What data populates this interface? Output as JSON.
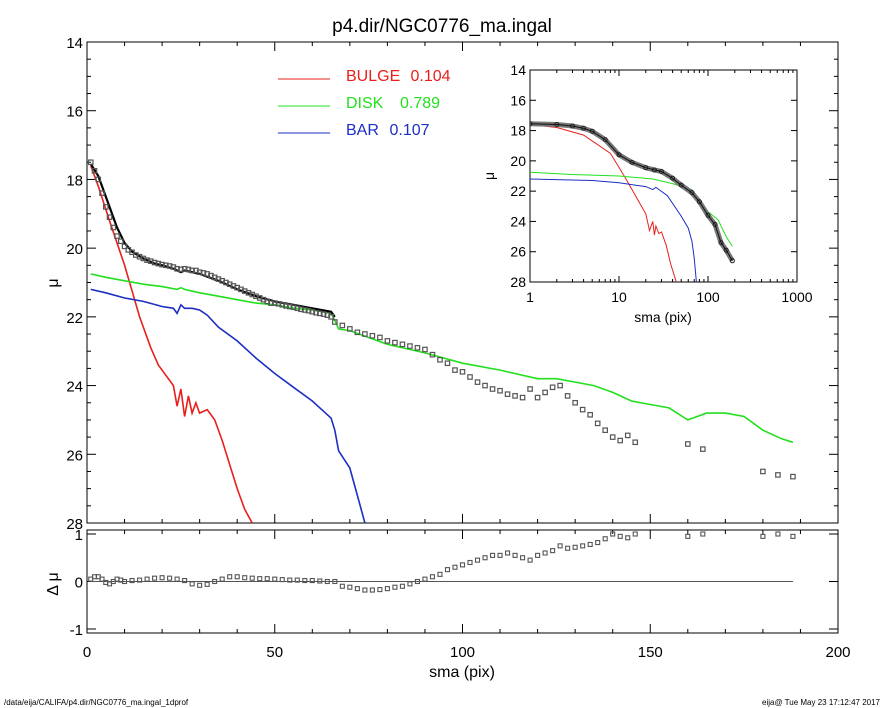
{
  "title": "p4.dir/NGC0776_ma.ingal",
  "footer": {
    "left": "/data/eija/CALIFA/p4.dir/NGC0776_ma.ingal_1dprof",
    "right": "eija@  Tue May 23 17:12:47 2017"
  },
  "colors": {
    "bulge": "#e8201c",
    "disk": "#22e01e",
    "bar": "#1c2ec4",
    "model": "#000000",
    "data_points": "#555555"
  },
  "chart_data": [
    {
      "type": "line",
      "panel": "main",
      "xlabel": "",
      "ylabel": "μ",
      "xlim": [
        0,
        200
      ],
      "ylim": [
        28,
        14
      ],
      "y_inverted": true,
      "yticks": [
        14,
        16,
        18,
        20,
        22,
        24,
        26,
        28
      ],
      "legend": {
        "placement": "top-center",
        "entries": [
          {
            "name": "BULGE",
            "value": "0.104",
            "color": "#e8201c"
          },
          {
            "name": "DISK",
            "value": "0.789",
            "color": "#22e01e"
          },
          {
            "name": "BAR",
            "value": "0.107",
            "color": "#1c2ec4"
          }
        ]
      },
      "series": [
        {
          "name": "BULGE",
          "x": [
            1,
            3,
            6,
            10,
            14,
            17,
            19,
            21,
            23,
            24,
            25,
            26,
            27,
            28,
            29,
            30,
            32,
            34,
            36,
            38,
            40,
            42,
            44
          ],
          "y": [
            17.6,
            18.2,
            19.2,
            20.5,
            22.0,
            22.9,
            23.4,
            23.7,
            24.0,
            24.6,
            24.1,
            24.9,
            24.3,
            24.8,
            24.5,
            24.8,
            24.7,
            25.0,
            25.6,
            26.3,
            27.0,
            27.6,
            28.0
          ]
        },
        {
          "name": "DISK",
          "x": [
            1,
            5,
            10,
            15,
            20,
            24,
            25,
            26,
            30,
            35,
            40,
            45,
            50,
            55,
            60,
            65,
            66,
            67,
            70,
            75,
            80,
            90,
            100,
            110,
            120,
            125,
            130,
            135,
            140,
            145,
            150,
            155,
            160,
            165,
            170,
            175,
            180,
            185,
            188
          ],
          "y": [
            20.75,
            20.85,
            20.95,
            21.05,
            21.12,
            21.2,
            21.15,
            21.2,
            21.3,
            21.4,
            21.5,
            21.6,
            21.65,
            21.75,
            21.8,
            21.9,
            22.1,
            22.35,
            22.4,
            22.6,
            22.8,
            23.05,
            23.35,
            23.55,
            23.8,
            23.8,
            23.9,
            24.0,
            24.2,
            24.45,
            24.55,
            24.65,
            25.0,
            24.8,
            24.8,
            24.9,
            25.3,
            25.55,
            25.65
          ]
        },
        {
          "name": "BAR",
          "x": [
            1,
            5,
            10,
            15,
            20,
            23,
            24,
            25,
            26,
            28,
            30,
            32,
            35,
            40,
            45,
            50,
            55,
            60,
            63,
            65,
            66,
            67,
            70,
            72,
            74
          ],
          "y": [
            21.2,
            21.3,
            21.45,
            21.55,
            21.7,
            21.75,
            21.9,
            21.65,
            21.75,
            21.75,
            21.8,
            21.95,
            22.3,
            22.7,
            23.2,
            23.65,
            24.05,
            24.45,
            24.75,
            24.95,
            25.3,
            25.9,
            26.4,
            27.2,
            28.0
          ]
        },
        {
          "name": "MODEL",
          "x": [
            1,
            3,
            5,
            8,
            10,
            12,
            15,
            18,
            20,
            23,
            25,
            26,
            28,
            30,
            35,
            40,
            45,
            50,
            55,
            60,
            65,
            66
          ],
          "y": [
            17.55,
            17.9,
            18.5,
            19.4,
            19.85,
            20.1,
            20.3,
            20.45,
            20.5,
            20.6,
            20.7,
            20.65,
            20.7,
            20.75,
            20.95,
            21.2,
            21.4,
            21.55,
            21.65,
            21.75,
            21.85,
            22.0
          ]
        },
        {
          "name": "DATA",
          "x": [
            1,
            2,
            3,
            4,
            5,
            6,
            7,
            8,
            9,
            10,
            11,
            12,
            13,
            14,
            15,
            16,
            17,
            18,
            19,
            20,
            21,
            22,
            23,
            24,
            25,
            26,
            27,
            28,
            29,
            30,
            31,
            32,
            33,
            34,
            35,
            36,
            37,
            38,
            39,
            40,
            41,
            42,
            43,
            44,
            45,
            46,
            47,
            48,
            49,
            50,
            51,
            52,
            53,
            54,
            55,
            56,
            57,
            58,
            59,
            60,
            61,
            62,
            63,
            64,
            65,
            66,
            68,
            70,
            72,
            74,
            76,
            78,
            80,
            82,
            84,
            86,
            88,
            90,
            92,
            94,
            96,
            98,
            100,
            102,
            104,
            106,
            108,
            110,
            112,
            114,
            116,
            118,
            120,
            122,
            124,
            126,
            128,
            130,
            132,
            134,
            136,
            138,
            140,
            142,
            144,
            146,
            160,
            164,
            180,
            184,
            188
          ],
          "y": [
            17.5,
            17.75,
            18.0,
            18.4,
            18.8,
            19.1,
            19.4,
            19.65,
            19.8,
            19.95,
            20.05,
            20.12,
            20.2,
            20.25,
            20.3,
            20.35,
            20.38,
            20.42,
            20.45,
            20.48,
            20.5,
            20.52,
            20.55,
            20.6,
            20.62,
            20.6,
            20.62,
            20.65,
            20.65,
            20.7,
            20.72,
            20.75,
            20.8,
            20.85,
            20.9,
            20.95,
            21.0,
            21.05,
            21.1,
            21.15,
            21.2,
            21.25,
            21.3,
            21.35,
            21.4,
            21.45,
            21.5,
            21.55,
            21.6,
            21.6,
            21.62,
            21.65,
            21.68,
            21.7,
            21.72,
            21.75,
            21.78,
            21.8,
            21.82,
            21.85,
            21.88,
            21.9,
            21.92,
            21.95,
            22.0,
            22.15,
            22.25,
            22.35,
            22.45,
            22.5,
            22.55,
            22.6,
            22.7,
            22.75,
            22.8,
            22.85,
            22.9,
            22.95,
            23.1,
            23.25,
            23.35,
            23.55,
            23.6,
            23.75,
            23.9,
            24.0,
            24.1,
            24.15,
            24.25,
            24.3,
            24.35,
            24.1,
            24.35,
            24.2,
            24.05,
            24.0,
            24.3,
            24.5,
            24.7,
            24.85,
            25.1,
            25.3,
            25.5,
            25.6,
            25.45,
            25.65,
            25.7,
            25.85,
            26.5,
            26.6,
            26.65
          ]
        }
      ]
    },
    {
      "type": "scatter",
      "panel": "residual",
      "xlabel": "sma (pix)",
      "ylabel": "Δ μ",
      "xlim": [
        0,
        200
      ],
      "ylim": [
        -1,
        1
      ],
      "xticks": [
        0,
        50,
        100,
        150,
        200
      ],
      "yticks": [
        -1,
        0,
        1
      ],
      "series": [
        {
          "name": "RESIDUAL",
          "x": [
            1,
            2,
            3,
            4,
            5,
            6,
            7,
            8,
            9,
            10,
            12,
            14,
            16,
            18,
            20,
            22,
            24,
            26,
            28,
            30,
            32,
            34,
            36,
            38,
            40,
            42,
            44,
            46,
            48,
            50,
            52,
            54,
            56,
            58,
            60,
            62,
            64,
            66,
            68,
            70,
            72,
            74,
            76,
            78,
            80,
            82,
            84,
            86,
            88,
            90,
            92,
            94,
            96,
            98,
            100,
            102,
            104,
            106,
            108,
            110,
            112,
            114,
            116,
            118,
            120,
            122,
            124,
            126,
            128,
            130,
            132,
            134,
            136,
            138,
            140,
            142,
            144,
            146,
            160,
            164,
            180,
            184,
            188
          ],
          "y": [
            0.05,
            0.1,
            0.1,
            0.05,
            -0.02,
            -0.05,
            0.0,
            0.05,
            0.03,
            0.0,
            0.02,
            0.03,
            0.05,
            0.07,
            0.08,
            0.07,
            0.05,
            0.02,
            -0.05,
            -0.08,
            -0.06,
            0.0,
            0.05,
            0.1,
            0.1,
            0.08,
            0.07,
            0.06,
            0.06,
            0.05,
            0.04,
            0.03,
            0.03,
            0.02,
            0.02,
            0.01,
            0.0,
            0.0,
            -0.1,
            -0.12,
            -0.15,
            -0.18,
            -0.18,
            -0.17,
            -0.15,
            -0.12,
            -0.1,
            -0.05,
            0.0,
            0.05,
            0.1,
            0.15,
            0.25,
            0.3,
            0.35,
            0.4,
            0.45,
            0.5,
            0.55,
            0.55,
            0.6,
            0.55,
            0.5,
            0.45,
            0.55,
            0.6,
            0.65,
            0.75,
            0.7,
            0.72,
            0.75,
            0.78,
            0.82,
            0.9,
            1.0,
            0.95,
            0.92,
            1.0,
            0.95,
            1.0,
            0.95,
            1.0,
            0.95
          ]
        }
      ]
    },
    {
      "type": "line",
      "panel": "inset",
      "xlabel": "sma (pix)",
      "ylabel": "μ",
      "x_scale": "log",
      "xlim": [
        1,
        1000
      ],
      "ylim": [
        28,
        14
      ],
      "y_inverted": true,
      "xticks": [
        1,
        10,
        100,
        1000
      ],
      "yticks": [
        14,
        16,
        18,
        20,
        22,
        24,
        26,
        28
      ],
      "series": [
        {
          "name": "BULGE",
          "x": [
            1,
            2,
            4,
            8,
            12,
            16,
            20,
            22,
            24,
            25,
            26,
            28,
            30,
            34,
            38,
            44
          ],
          "y": [
            17.6,
            17.8,
            18.3,
            19.5,
            21.2,
            22.5,
            23.5,
            24.6,
            24.0,
            24.9,
            24.3,
            24.8,
            24.7,
            25.6,
            26.8,
            28.0
          ]
        },
        {
          "name": "DISK",
          "x": [
            1,
            3,
            10,
            24,
            40,
            66,
            80,
            100,
            130,
            160,
            188
          ],
          "y": [
            20.75,
            20.9,
            21.0,
            21.2,
            21.5,
            21.9,
            22.8,
            23.35,
            23.9,
            25.0,
            25.65
          ]
        },
        {
          "name": "BAR",
          "x": [
            1,
            5,
            10,
            20,
            24,
            26,
            35,
            50,
            60,
            66,
            70,
            74
          ],
          "y": [
            21.2,
            21.3,
            21.45,
            21.7,
            21.9,
            21.75,
            22.3,
            23.65,
            24.45,
            25.3,
            26.4,
            28.0
          ]
        },
        {
          "name": "DATA",
          "x": [
            1,
            2,
            3,
            4,
            5,
            7,
            10,
            14,
            20,
            25,
            30,
            40,
            50,
            66,
            80,
            100,
            120,
            140,
            160,
            188
          ],
          "y": [
            17.55,
            17.6,
            17.7,
            17.85,
            18.05,
            18.6,
            19.6,
            20.1,
            20.45,
            20.6,
            20.7,
            21.15,
            21.6,
            22.1,
            22.7,
            23.6,
            24.2,
            25.4,
            25.9,
            26.6
          ]
        }
      ]
    }
  ]
}
